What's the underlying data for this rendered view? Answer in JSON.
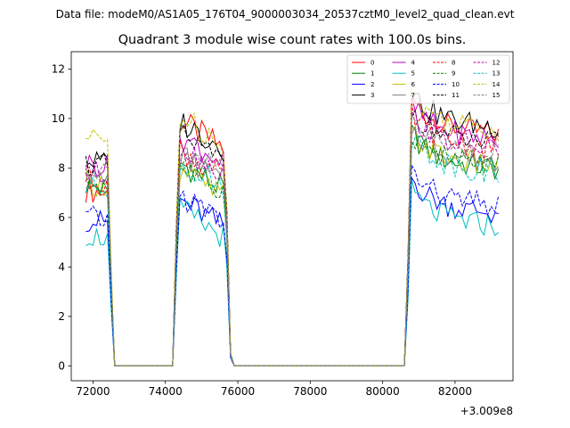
{
  "suptitle": "Data file: modeM0/AS1A05_176T04_9000003034_20537cztM0_level2_quad_clean.evt",
  "chart_data": {
    "type": "line",
    "title": "Quadrant 3 module wise count rates with 100.0s bins.",
    "xlabel": "",
    "ylabel": "",
    "x_offset_text": "+3.009e8",
    "xlim": [
      71400,
      83600
    ],
    "ylim": [
      -0.6,
      12.7
    ],
    "xticks": [
      72000,
      74000,
      76000,
      78000,
      80000,
      82000
    ],
    "xtick_labels": [
      "72000",
      "74000",
      "76000",
      "78000",
      "80000",
      "82000"
    ],
    "yticks": [
      0,
      2,
      4,
      6,
      8,
      10,
      12
    ],
    "ytick_labels": [
      "0",
      "2",
      "4",
      "6",
      "8",
      "10",
      "12"
    ],
    "grid": false,
    "legend_position": "top-right",
    "legend_columns": 4,
    "segments": {
      "x_start": [
        71800,
        74300,
        80700
      ],
      "x_end": [
        72400,
        75800,
        83200
      ],
      "gaps_zero_from": [
        72600,
        75900
      ],
      "gaps_zero_to": [
        74200,
        80600
      ]
    },
    "series": [
      {
        "name": "0",
        "color": "#ff0000",
        "dash": "solid",
        "levels": [
          7.1,
          10.0,
          9.6
        ]
      },
      {
        "name": "1",
        "color": "#008000",
        "dash": "solid",
        "levels": [
          7.3,
          8.3,
          8.2
        ]
      },
      {
        "name": "2",
        "color": "#0000ff",
        "dash": "solid",
        "levels": [
          5.9,
          6.8,
          6.4
        ]
      },
      {
        "name": "3",
        "color": "#000000",
        "dash": "solid",
        "levels": [
          8.3,
          10.0,
          9.9
        ]
      },
      {
        "name": "4",
        "color": "#bf00bf",
        "dash": "solid",
        "levels": [
          8.2,
          9.4,
          9.4
        ]
      },
      {
        "name": "5",
        "color": "#00bfbf",
        "dash": "solid",
        "levels": [
          5.3,
          6.4,
          5.9
        ]
      },
      {
        "name": "6",
        "color": "#bfbf00",
        "dash": "solid",
        "levels": [
          7.4,
          8.0,
          8.3
        ]
      },
      {
        "name": "7",
        "color": "#808080",
        "dash": "solid",
        "levels": [
          7.6,
          8.6,
          8.5
        ]
      },
      {
        "name": "8",
        "color": "#ff0000",
        "dash": "dashed",
        "levels": [
          7.6,
          8.8,
          9.0
        ]
      },
      {
        "name": "9",
        "color": "#008000",
        "dash": "dashed",
        "levels": [
          7.4,
          8.2,
          8.3
        ]
      },
      {
        "name": "10",
        "color": "#0000ff",
        "dash": "dashed",
        "levels": [
          6.0,
          7.0,
          6.7
        ]
      },
      {
        "name": "11",
        "color": "#000000",
        "dash": "dashed",
        "levels": [
          8.2,
          9.4,
          9.2
        ]
      },
      {
        "name": "12",
        "color": "#bf00bf",
        "dash": "dashed",
        "levels": [
          7.8,
          9.0,
          9.0
        ]
      },
      {
        "name": "13",
        "color": "#00bfbf",
        "dash": "dashed",
        "levels": [
          7.2,
          8.4,
          8.1
        ]
      },
      {
        "name": "14",
        "color": "#bfbf00",
        "dash": "dashed",
        "levels": [
          9.2,
          10.2,
          9.8
        ]
      },
      {
        "name": "15",
        "color": "#808080",
        "dash": "dashed",
        "levels": [
          8.0,
          8.9,
          8.8
        ]
      }
    ]
  }
}
